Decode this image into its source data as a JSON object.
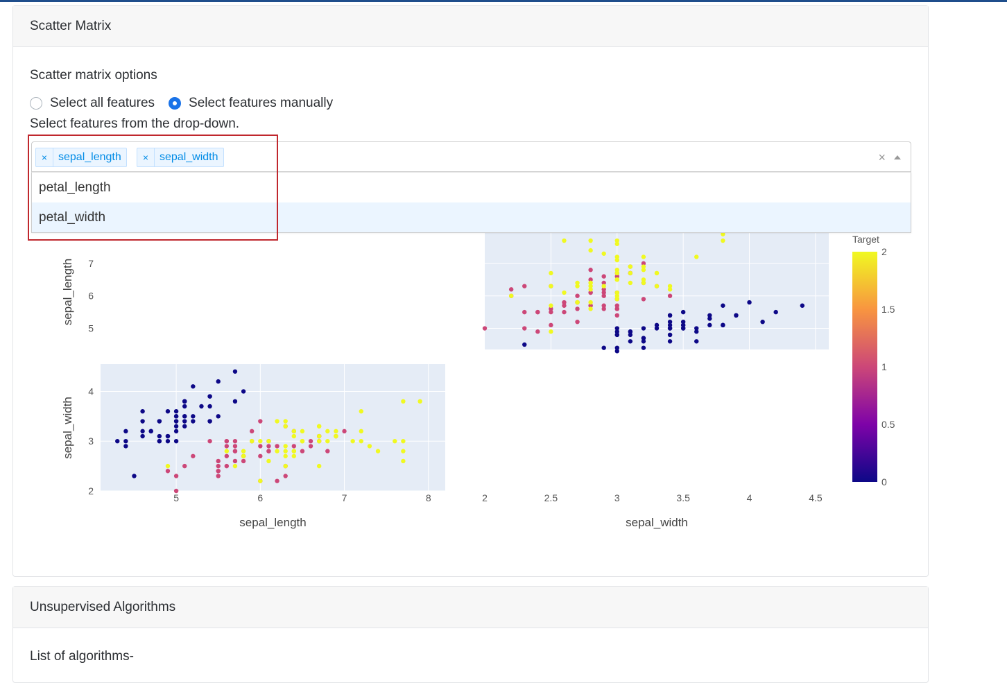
{
  "scatter_card": {
    "header": "Scatter Matrix",
    "options_title": "Scatter matrix options",
    "radio_all_label": "Select all features",
    "radio_manual_label": "Select features manually",
    "radio_selected": "manual",
    "hint": "Select features from the drop-down.",
    "selected_tags": [
      "sepal_length",
      "sepal_width"
    ],
    "tag_remove_glyph": "×",
    "clear_glyph": "×",
    "menu_options": [
      "petal_length",
      "petal_width"
    ],
    "menu_focused": "petal_width"
  },
  "unsup_card": {
    "header": "Unsupervised Algorithms",
    "list_label": "List of algorithms-"
  },
  "chart_data": {
    "type": "scatter",
    "title": "",
    "dimensions": [
      "sepal_length",
      "sepal_width"
    ],
    "colorbar": {
      "title": "Target",
      "range": [
        0,
        2
      ],
      "ticks": [
        "0",
        "0.5",
        "1",
        "1.5",
        "2"
      ],
      "colorscale": "plasma"
    },
    "panels": {
      "sepal_length_axis_ticks": [
        "5",
        "6",
        "7",
        "8"
      ],
      "sepal_width_axis_ticks": [
        "2",
        "2.5",
        "3",
        "3.5",
        "4",
        "4.5"
      ],
      "row_sepal_length_ticks": [
        "5",
        "6",
        "7"
      ],
      "row_sepal_width_ticks": [
        "2",
        "3",
        "4"
      ]
    },
    "xlabel_left": "sepal_length",
    "xlabel_right": "sepal_width",
    "ylabel_top": "sepal_length",
    "ylabel_bottom": "sepal_width",
    "xlim_sepal_length": [
      4.1,
      8.2
    ],
    "xlim_sepal_width": [
      2.0,
      4.6
    ],
    "ylim_sepal_width": [
      2.0,
      4.55
    ],
    "ylim_sepal_length": [
      4.35,
      8.0
    ],
    "points": [
      [
        5.1,
        3.5,
        0
      ],
      [
        4.9,
        3.0,
        0
      ],
      [
        4.7,
        3.2,
        0
      ],
      [
        4.6,
        3.1,
        0
      ],
      [
        5.0,
        3.6,
        0
      ],
      [
        5.4,
        3.9,
        0
      ],
      [
        4.6,
        3.4,
        0
      ],
      [
        5.0,
        3.4,
        0
      ],
      [
        4.4,
        2.9,
        0
      ],
      [
        4.9,
        3.1,
        0
      ],
      [
        5.4,
        3.7,
        0
      ],
      [
        4.8,
        3.4,
        0
      ],
      [
        4.8,
        3.0,
        0
      ],
      [
        4.3,
        3.0,
        0
      ],
      [
        5.8,
        4.0,
        0
      ],
      [
        5.7,
        4.4,
        0
      ],
      [
        5.4,
        3.9,
        0
      ],
      [
        5.1,
        3.5,
        0
      ],
      [
        5.7,
        3.8,
        0
      ],
      [
        5.1,
        3.8,
        0
      ],
      [
        5.4,
        3.4,
        0
      ],
      [
        5.1,
        3.7,
        0
      ],
      [
        4.6,
        3.6,
        0
      ],
      [
        5.1,
        3.3,
        0
      ],
      [
        4.8,
        3.4,
        0
      ],
      [
        5.0,
        3.0,
        0
      ],
      [
        5.0,
        3.4,
        0
      ],
      [
        5.2,
        3.5,
        0
      ],
      [
        5.2,
        3.4,
        0
      ],
      [
        4.7,
        3.2,
        0
      ],
      [
        4.8,
        3.1,
        0
      ],
      [
        5.4,
        3.4,
        0
      ],
      [
        5.2,
        4.1,
        0
      ],
      [
        5.5,
        4.2,
        0
      ],
      [
        4.9,
        3.1,
        0
      ],
      [
        5.0,
        3.2,
        0
      ],
      [
        5.5,
        3.5,
        0
      ],
      [
        4.9,
        3.6,
        0
      ],
      [
        4.4,
        3.0,
        0
      ],
      [
        5.1,
        3.4,
        0
      ],
      [
        5.0,
        3.5,
        0
      ],
      [
        4.5,
        2.3,
        0
      ],
      [
        4.4,
        3.2,
        0
      ],
      [
        5.0,
        3.5,
        0
      ],
      [
        5.1,
        3.8,
        0
      ],
      [
        4.8,
        3.0,
        0
      ],
      [
        5.1,
        3.8,
        0
      ],
      [
        4.6,
        3.2,
        0
      ],
      [
        5.3,
        3.7,
        0
      ],
      [
        5.0,
        3.3,
        0
      ],
      [
        7.0,
        3.2,
        1
      ],
      [
        6.4,
        3.2,
        1
      ],
      [
        6.9,
        3.1,
        1
      ],
      [
        5.5,
        2.3,
        1
      ],
      [
        6.5,
        2.8,
        1
      ],
      [
        5.7,
        2.8,
        1
      ],
      [
        6.3,
        3.3,
        1
      ],
      [
        4.9,
        2.4,
        1
      ],
      [
        6.6,
        2.9,
        1
      ],
      [
        5.2,
        2.7,
        1
      ],
      [
        5.0,
        2.0,
        1
      ],
      [
        5.9,
        3.0,
        1
      ],
      [
        6.0,
        2.2,
        1
      ],
      [
        6.1,
        2.9,
        1
      ],
      [
        5.6,
        2.9,
        1
      ],
      [
        6.7,
        3.1,
        1
      ],
      [
        5.6,
        3.0,
        1
      ],
      [
        5.8,
        2.7,
        1
      ],
      [
        6.2,
        2.2,
        1
      ],
      [
        5.6,
        2.5,
        1
      ],
      [
        5.9,
        3.2,
        1
      ],
      [
        6.1,
        2.8,
        1
      ],
      [
        6.3,
        2.5,
        1
      ],
      [
        6.1,
        2.8,
        1
      ],
      [
        6.4,
        2.9,
        1
      ],
      [
        6.6,
        3.0,
        1
      ],
      [
        6.8,
        2.8,
        1
      ],
      [
        6.7,
        3.0,
        1
      ],
      [
        6.0,
        2.9,
        1
      ],
      [
        5.7,
        2.6,
        1
      ],
      [
        5.5,
        2.4,
        1
      ],
      [
        5.5,
        2.4,
        1
      ],
      [
        5.8,
        2.7,
        1
      ],
      [
        6.0,
        2.7,
        1
      ],
      [
        5.4,
        3.0,
        1
      ],
      [
        6.0,
        3.4,
        1
      ],
      [
        6.7,
        3.1,
        1
      ],
      [
        6.3,
        2.3,
        1
      ],
      [
        5.6,
        3.0,
        1
      ],
      [
        5.5,
        2.5,
        1
      ],
      [
        5.5,
        2.6,
        1
      ],
      [
        6.1,
        3.0,
        1
      ],
      [
        5.8,
        2.6,
        1
      ],
      [
        5.0,
        2.3,
        1
      ],
      [
        5.6,
        2.7,
        1
      ],
      [
        5.7,
        3.0,
        1
      ],
      [
        5.7,
        2.9,
        1
      ],
      [
        6.2,
        2.9,
        1
      ],
      [
        5.1,
        2.5,
        1
      ],
      [
        5.7,
        2.8,
        1
      ],
      [
        6.3,
        3.3,
        2
      ],
      [
        5.8,
        2.7,
        2
      ],
      [
        7.1,
        3.0,
        2
      ],
      [
        6.3,
        2.9,
        2
      ],
      [
        6.5,
        3.0,
        2
      ],
      [
        7.6,
        3.0,
        2
      ],
      [
        4.9,
        2.5,
        2
      ],
      [
        7.3,
        2.9,
        2
      ],
      [
        6.7,
        2.5,
        2
      ],
      [
        7.2,
        3.6,
        2
      ],
      [
        6.5,
        3.2,
        2
      ],
      [
        6.4,
        2.7,
        2
      ],
      [
        6.8,
        3.0,
        2
      ],
      [
        5.7,
        2.5,
        2
      ],
      [
        5.8,
        2.8,
        2
      ],
      [
        6.4,
        3.2,
        2
      ],
      [
        6.5,
        3.0,
        2
      ],
      [
        7.7,
        3.8,
        2
      ],
      [
        7.7,
        2.6,
        2
      ],
      [
        6.0,
        2.2,
        2
      ],
      [
        6.9,
        3.2,
        2
      ],
      [
        5.6,
        2.8,
        2
      ],
      [
        7.7,
        2.8,
        2
      ],
      [
        6.3,
        2.7,
        2
      ],
      [
        6.7,
        3.3,
        2
      ],
      [
        7.2,
        3.2,
        2
      ],
      [
        6.2,
        2.8,
        2
      ],
      [
        6.1,
        3.0,
        2
      ],
      [
        6.4,
        2.8,
        2
      ],
      [
        7.2,
        3.0,
        2
      ],
      [
        7.4,
        2.8,
        2
      ],
      [
        7.9,
        3.8,
        2
      ],
      [
        6.4,
        2.8,
        2
      ],
      [
        6.3,
        2.8,
        2
      ],
      [
        6.1,
        2.6,
        2
      ],
      [
        7.7,
        3.0,
        2
      ],
      [
        6.3,
        3.4,
        2
      ],
      [
        6.4,
        3.1,
        2
      ],
      [
        6.0,
        3.0,
        2
      ],
      [
        6.9,
        3.1,
        2
      ],
      [
        6.7,
        3.1,
        2
      ],
      [
        6.9,
        3.1,
        2
      ],
      [
        5.8,
        2.7,
        2
      ],
      [
        6.8,
        3.2,
        2
      ],
      [
        6.7,
        3.3,
        2
      ],
      [
        6.7,
        3.0,
        2
      ],
      [
        6.3,
        2.5,
        2
      ],
      [
        6.5,
        3.0,
        2
      ],
      [
        6.2,
        3.4,
        2
      ],
      [
        5.9,
        3.0,
        2
      ]
    ]
  }
}
